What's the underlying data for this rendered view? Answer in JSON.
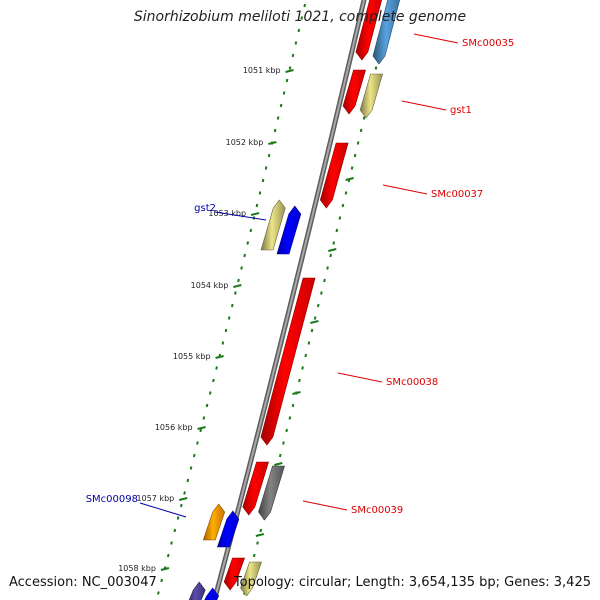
{
  "title": "Sinorhizobium meliloti 1021, complete genome",
  "footer": {
    "accession": "Accession: NC_003047",
    "summary": "Topology: circular; Length: 3,654,135 bp; Genes: 3,425"
  },
  "colors": {
    "forward_label": "#dd0000",
    "reverse_label": "#0000aa",
    "backbone": "#808080",
    "tick": "#1a7a1a"
  },
  "ticks": [
    "1051 kbp",
    "1052 kbp",
    "1053 kbp",
    "1054 kbp",
    "1055 kbp",
    "1056 kbp",
    "1057 kbp",
    "1058 kbp"
  ],
  "labels": [
    {
      "text": "SMc00035",
      "strand": "forward"
    },
    {
      "text": "gst1",
      "strand": "forward"
    },
    {
      "text": "SMc00037",
      "strand": "forward"
    },
    {
      "text": "gst2",
      "strand": "reverse"
    },
    {
      "text": "SMc00038",
      "strand": "forward"
    },
    {
      "text": "SMc00039",
      "strand": "forward"
    },
    {
      "text": "SMc00098",
      "strand": "reverse"
    }
  ],
  "features": [
    {
      "name": "SMc00035",
      "strand": "forward",
      "color": "#ff0000"
    },
    {
      "name": "SMc00035-companion",
      "strand": "forward",
      "color": "#4682b4"
    },
    {
      "name": "gst1-forward",
      "strand": "forward",
      "color": "#ff0000"
    },
    {
      "name": "gst1",
      "strand": "forward",
      "color": "#bdb76b"
    },
    {
      "name": "SMc00037",
      "strand": "forward",
      "color": "#ff0000"
    },
    {
      "name": "gst2",
      "strand": "reverse",
      "color": "#bdb76b"
    },
    {
      "name": "gst2-companion",
      "strand": "reverse",
      "color": "#0000ff"
    },
    {
      "name": "SMc00038",
      "strand": "forward",
      "color": "#ff0000"
    },
    {
      "name": "SMc00039",
      "strand": "forward",
      "color": "#ff0000"
    },
    {
      "name": "SMc00039-companion",
      "strand": "forward",
      "color": "#696969"
    },
    {
      "name": "SMc00098",
      "strand": "reverse",
      "color": "#ff8c00"
    },
    {
      "name": "SMc00098-companion",
      "strand": "reverse",
      "color": "#0000ff"
    },
    {
      "name": "bottom-reverse-1",
      "strand": "reverse",
      "color": "#483d8b"
    },
    {
      "name": "bottom-reverse-2",
      "strand": "reverse",
      "color": "#0000ff"
    },
    {
      "name": "bottom-forward-1",
      "strand": "forward",
      "color": "#ff0000"
    },
    {
      "name": "bottom-forward-2",
      "strand": "forward",
      "color": "#bdb76b"
    }
  ]
}
